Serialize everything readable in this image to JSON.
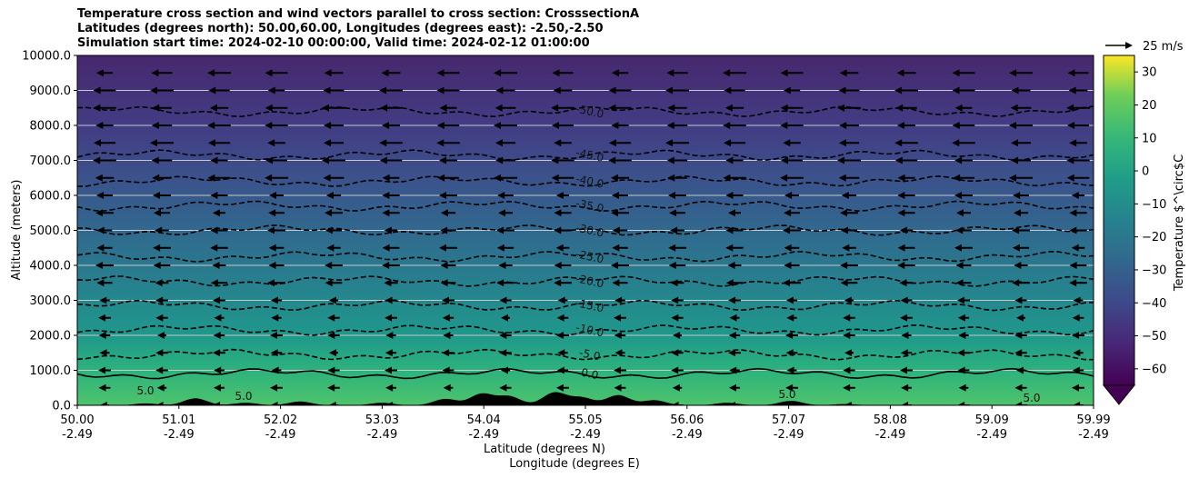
{
  "chart_data": {
    "type": "heatmap",
    "title_lines": [
      "Temperature cross section and wind vectors parallel to cross section: CrosssectionA",
      "Latitudes (degrees north): 50.00,60.00, Longitudes (degrees east): -2.50,-2.50",
      "Simulation start time: 2024-02-10 00:00:00, Valid time: 2024-02-12 01:00:00"
    ],
    "ylabel": "Altitude (meters)",
    "xlabel_lines": [
      "Latitude (degrees N)",
      "Longitude (degrees E)"
    ],
    "ylim": [
      0,
      10000
    ],
    "y_ticks": [
      "0.0",
      "1000.0",
      "2000.0",
      "3000.0",
      "4000.0",
      "5000.0",
      "6000.0",
      "7000.0",
      "8000.0",
      "9000.0",
      "10000.0"
    ],
    "x_ticks": [
      {
        "lat": "50.00",
        "lon": "-2.49"
      },
      {
        "lat": "51.01",
        "lon": "-2.49"
      },
      {
        "lat": "52.02",
        "lon": "-2.49"
      },
      {
        "lat": "53.03",
        "lon": "-2.49"
      },
      {
        "lat": "54.04",
        "lon": "-2.49"
      },
      {
        "lat": "55.05",
        "lon": "-2.49"
      },
      {
        "lat": "56.06",
        "lon": "-2.49"
      },
      {
        "lat": "57.07",
        "lon": "-2.49"
      },
      {
        "lat": "58.08",
        "lon": "-2.49"
      },
      {
        "lat": "59.09",
        "lon": "-2.49"
      },
      {
        "lat": "59.99",
        "lon": "-2.49"
      }
    ],
    "grid": true,
    "colorbar": {
      "label": "Temperature $^\\circ$C",
      "ticks": [
        "30",
        "20",
        "10",
        "0",
        "−10",
        "−20",
        "−30",
        "−40",
        "−50",
        "−60"
      ],
      "range": [
        -65,
        35
      ],
      "extend": "min",
      "colormap": "viridis"
    },
    "vector_key": "25 m/s",
    "contours": [
      {
        "value": 0.0,
        "label": "0.0",
        "altitude": 900
      },
      {
        "value": -5.0,
        "label": "-5.0",
        "altitude": 1450
      },
      {
        "value": -10.0,
        "label": "-10.0",
        "altitude": 2150
      },
      {
        "value": -15.0,
        "label": "-15.0",
        "altitude": 2850
      },
      {
        "value": -20.0,
        "label": "-20.0",
        "altitude": 3550
      },
      {
        "value": -25.0,
        "label": "-25.0",
        "altitude": 4250
      },
      {
        "value": -30.0,
        "label": "-30.0",
        "altitude": 5000
      },
      {
        "value": -35.0,
        "label": "-35.0",
        "altitude": 5700
      },
      {
        "value": -40.0,
        "label": "-40.0",
        "altitude": 6400
      },
      {
        "value": -45.0,
        "label": "-45.0",
        "altitude": 7150
      },
      {
        "value": -50.0,
        "label": "-50.0",
        "altitude": 8400
      }
    ],
    "surface_labels": [
      "5.0",
      "5.0",
      "5.0",
      "5.0"
    ]
  }
}
